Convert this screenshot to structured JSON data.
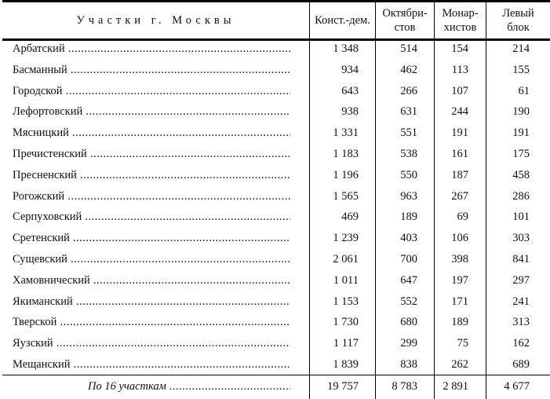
{
  "header": {
    "district": "Участки г. Москвы",
    "columns": [
      [
        "Конст.-дем."
      ],
      [
        "Октябри-",
        "стов"
      ],
      [
        "Монар-",
        "хистов"
      ],
      [
        "Левый",
        "блок"
      ]
    ]
  },
  "rows": [
    {
      "name": "Арбатский",
      "values": [
        "1 348",
        "514",
        "154",
        "214"
      ]
    },
    {
      "name": "Басманный",
      "values": [
        "934",
        "462",
        "113",
        "155"
      ]
    },
    {
      "name": "Городской",
      "values": [
        "643",
        "266",
        "107",
        "61"
      ]
    },
    {
      "name": "Лефортовский",
      "values": [
        "938",
        "631",
        "244",
        "190"
      ]
    },
    {
      "name": "Мясницкий",
      "values": [
        "1 331",
        "551",
        "191",
        "191"
      ]
    },
    {
      "name": "Пречистенский",
      "values": [
        "1 183",
        "538",
        "161",
        "175"
      ]
    },
    {
      "name": "Пресненский",
      "values": [
        "1 196",
        "550",
        "187",
        "458"
      ]
    },
    {
      "name": "Рогожский",
      "values": [
        "1 565",
        "963",
        "267",
        "286"
      ]
    },
    {
      "name": "Серпуховский",
      "values": [
        "469",
        "189",
        "69",
        "101"
      ]
    },
    {
      "name": "Сретенский",
      "values": [
        "1 239",
        "403",
        "106",
        "303"
      ]
    },
    {
      "name": "Сущевский",
      "values": [
        "2 061",
        "700",
        "398",
        "841"
      ]
    },
    {
      "name": "Хамовнический",
      "values": [
        "1 011",
        "647",
        "197",
        "297"
      ]
    },
    {
      "name": "Якиманский",
      "values": [
        "1 153",
        "552",
        "171",
        "241"
      ]
    },
    {
      "name": "Тверской",
      "values": [
        "1 730",
        "680",
        "189",
        "313"
      ]
    },
    {
      "name": "Яузский",
      "values": [
        "1 117",
        "299",
        "75",
        "162"
      ]
    },
    {
      "name": "Мещанский",
      "values": [
        "1 839",
        "838",
        "262",
        "689"
      ]
    }
  ],
  "total": {
    "name": "По 16 участкам",
    "values": [
      "19 757",
      "8 783",
      "2 891",
      "4 677"
    ]
  }
}
